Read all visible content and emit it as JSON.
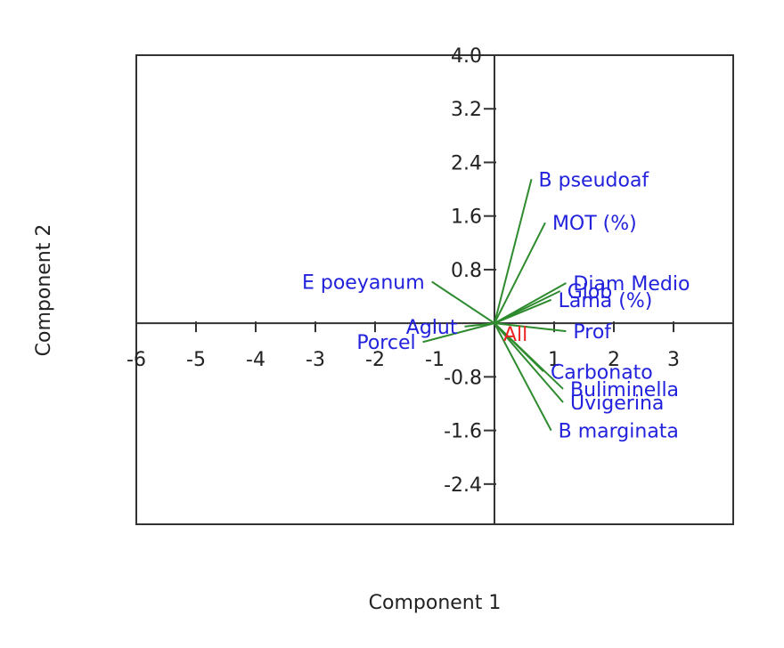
{
  "chart_data": {
    "type": "scatter",
    "subtype": "biplot-loading-vectors",
    "title": "",
    "xlabel": "Component 1",
    "ylabel": "Component 2",
    "xlim": [
      -6,
      4
    ],
    "ylim": [
      -3,
      4
    ],
    "xticks": [
      -6,
      -5,
      -4,
      -3,
      -2,
      -1,
      1,
      2,
      3
    ],
    "xtick_labels": [
      "-6",
      "-5",
      "-4",
      "-3",
      "-2",
      "-1",
      "1",
      "2",
      "3"
    ],
    "yticks": [
      4.0,
      3.2,
      2.4,
      1.6,
      0.8,
      -0.8,
      -1.6,
      -2.4
    ],
    "ytick_labels": [
      "4.0",
      "3.2",
      "2.4",
      "1.6",
      "0.8",
      "-0.8",
      "-1.6",
      "-2.4"
    ],
    "grid": false,
    "vector_color": "#2e8b2e",
    "label_color": "#2222dd",
    "center_label": "All",
    "center_label_color": "#ee2222",
    "vectors": [
      {
        "label": "B pseudoaf",
        "x": 0.62,
        "y": 2.15
      },
      {
        "label": "MOT (%)",
        "x": 0.85,
        "y": 1.5
      },
      {
        "label": "Diam Medio",
        "x": 1.2,
        "y": 0.6
      },
      {
        "label": "Glob",
        "x": 1.1,
        "y": 0.48
      },
      {
        "label": "Lama (%)",
        "x": 0.95,
        "y": 0.35
      },
      {
        "label": "E poeyanum",
        "x": -1.05,
        "y": 0.62
      },
      {
        "label": "Aglut",
        "x": -0.5,
        "y": -0.05
      },
      {
        "label": "Porcel",
        "x": -1.2,
        "y": -0.28
      },
      {
        "label": "Prof",
        "x": 1.2,
        "y": -0.12
      },
      {
        "label": "Carbonato",
        "x": 0.82,
        "y": -0.72
      },
      {
        "label": "Buliminella",
        "x": 1.15,
        "y": -0.98
      },
      {
        "label": "Uvigerina",
        "x": 1.15,
        "y": -1.18
      },
      {
        "label": "B marginata",
        "x": 0.95,
        "y": -1.6
      }
    ]
  }
}
